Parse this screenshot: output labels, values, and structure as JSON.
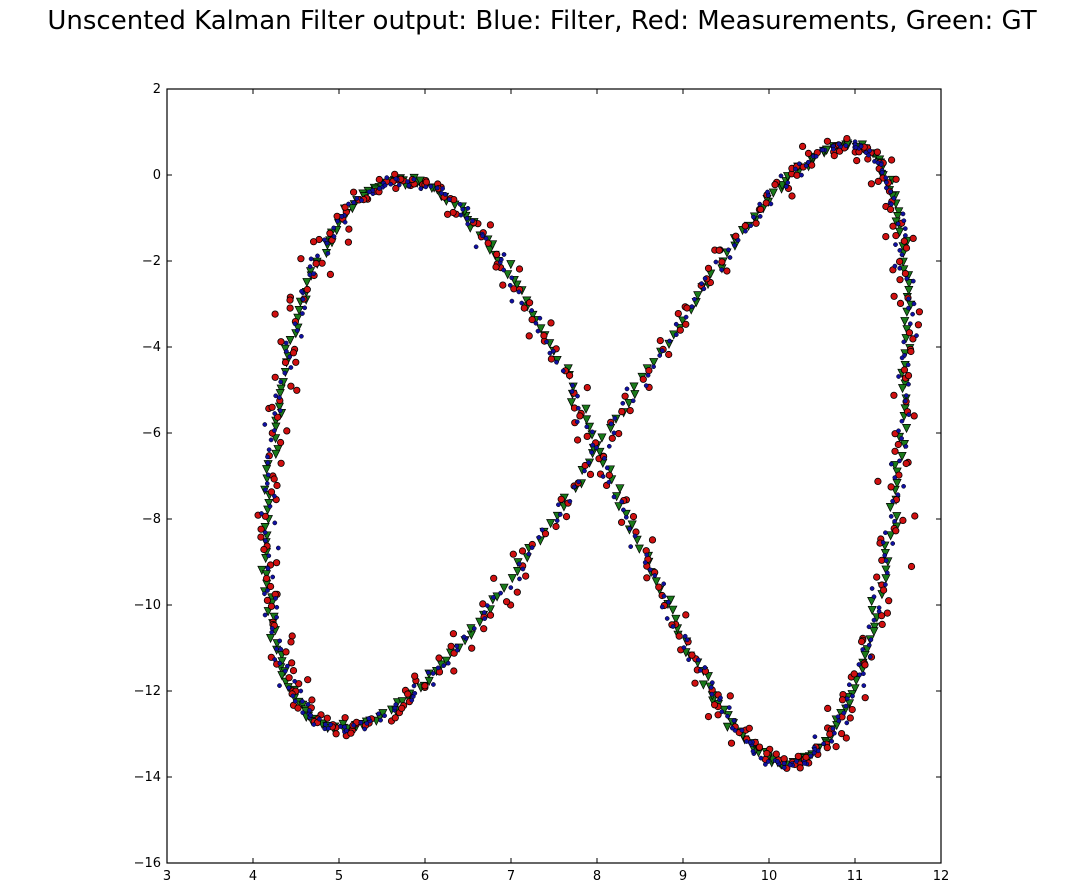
{
  "chart_data": {
    "type": "scatter",
    "title": "Unscented Kalman Filter output: Blue: Filter, Red: Measurements, Green: GT",
    "xlabel": "",
    "ylabel": "",
    "xlim": [
      3,
      12
    ],
    "ylim": [
      -16,
      2
    ],
    "xticks": [
      "3",
      "4",
      "5",
      "6",
      "7",
      "8",
      "9",
      "10",
      "11",
      "12"
    ],
    "yticks": [
      "2",
      "0",
      "−2",
      "−4",
      "−6",
      "−8",
      "−10",
      "−12",
      "−14",
      "−16"
    ],
    "grid": false,
    "legend": "none",
    "shape": {
      "description_free": true,
      "center": [
        8.02,
        -6.5
      ],
      "amplitude_x": [
        3.66,
        0.38
      ],
      "amplitude_y": [
        6.78,
        0.58
      ],
      "points_per_series": 420
    },
    "series": [
      {
        "key": "gt",
        "color": "#1a7a1a",
        "marker": "triangle",
        "noise": 0.03
      },
      {
        "key": "measurements",
        "color": "#d01010",
        "marker": "circle",
        "noise": 0.1
      },
      {
        "key": "filter",
        "color": "#1010a0",
        "marker": "dot",
        "noise": 0.05,
        "lag": 0.05
      }
    ]
  }
}
